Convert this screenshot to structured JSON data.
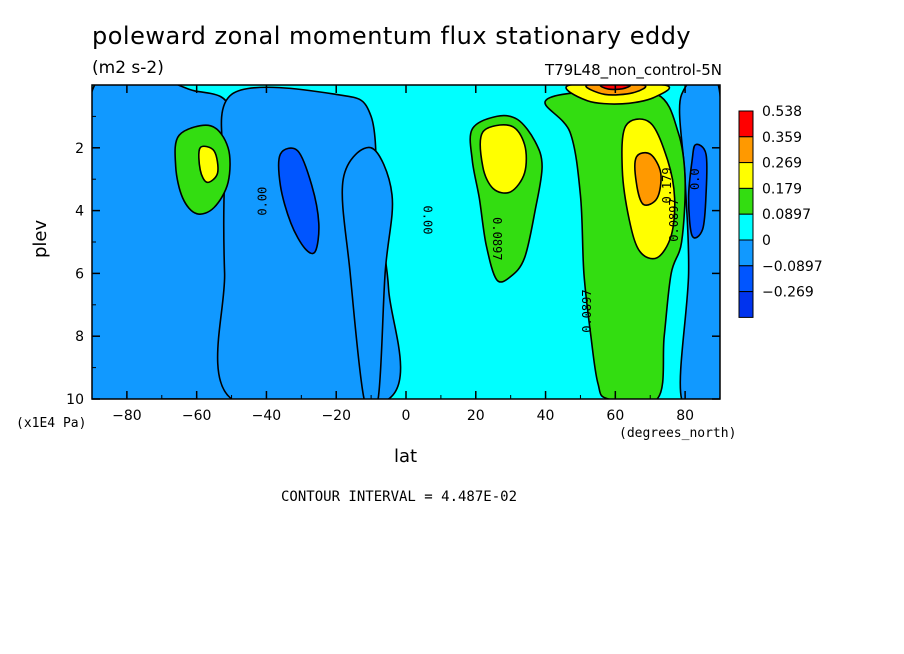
{
  "chart_data": {
    "type": "heatmap",
    "title": "poleward zonal momentum flux stationary eddy",
    "units": "(m2 s-2)",
    "run_label": "T79L48_non_control-5N",
    "xlabel": "lat",
    "ylabel": "plev",
    "x_units": "(degrees_north)",
    "y_units": "(x1E4 Pa)",
    "xlim": [
      -90,
      90
    ],
    "ylim": [
      0,
      10
    ],
    "y_inverted": true,
    "x_ticks": [
      -80,
      -60,
      -40,
      -20,
      0,
      20,
      40,
      60,
      80
    ],
    "y_ticks": [
      2,
      4,
      6,
      8,
      10
    ],
    "contour_interval_text": "CONTOUR INTERVAL = 4.487E-02",
    "colorbar": {
      "levels": [
        "0.538",
        "0.359",
        "0.269",
        "0.179",
        "0.0897",
        "0",
        "−0.0897",
        "−0.269"
      ],
      "colors": [
        "#ff0000",
        "#ff9900",
        "#ffff00",
        "#33dd11",
        "#00ffff",
        "#1199ff",
        "#0055ff",
        "#0033ee"
      ]
    },
    "contour_labels": [
      {
        "text": "0.00",
        "x": -40,
        "y": 3.7,
        "rotate": -90
      },
      {
        "text": "0.00",
        "x": 5,
        "y": 4.3,
        "rotate": 90
      },
      {
        "text": "0.0897",
        "x": 25,
        "y": 4.9,
        "rotate": 90
      },
      {
        "text": "0.0897",
        "x": 53,
        "y": 7.2,
        "rotate": -90
      },
      {
        "text": "0.179",
        "x": 76,
        "y": 3.2,
        "rotate": -90
      },
      {
        "text": "0.0897",
        "x": 78,
        "y": 4.3,
        "rotate": -90
      },
      {
        "text": "0.0",
        "x": 84,
        "y": 3.0,
        "rotate": -90
      }
    ],
    "regions": [
      {
        "name": "southern-jet-weak",
        "color": "#1199ff",
        "pts": [
          [
            -90,
            0.2
          ],
          [
            -60,
            0.2
          ],
          [
            -50,
            0.8
          ],
          [
            -48,
            3
          ],
          [
            -50,
            6
          ],
          [
            -48,
            10
          ],
          [
            -60,
            10
          ],
          [
            -70,
            10
          ],
          [
            -90,
            10
          ]
        ]
      },
      {
        "name": "south-negative-band",
        "color": "#1199ff",
        "pts": [
          [
            -50,
            0.3
          ],
          [
            -20,
            0.3
          ],
          [
            -10,
            1
          ],
          [
            -8,
            4
          ],
          [
            -5,
            6.5
          ],
          [
            -5,
            10
          ],
          [
            -50,
            10
          ],
          [
            -52,
            6
          ],
          [
            -52,
            3
          ]
        ]
      },
      {
        "name": "tropics-weak",
        "color": "#1199ff",
        "pts": [
          [
            -10,
            2
          ],
          [
            -4,
            3.5
          ],
          [
            -6,
            6
          ],
          [
            -8,
            10
          ],
          [
            -12,
            10
          ],
          [
            -16,
            6
          ],
          [
            -18,
            3
          ]
        ]
      },
      {
        "name": "arctic-weak",
        "color": "#1199ff",
        "pts": [
          [
            79,
            0.3
          ],
          [
            90,
            0.3
          ],
          [
            90,
            10
          ],
          [
            79,
            10
          ],
          [
            81,
            6
          ],
          [
            80,
            3
          ]
        ]
      },
      {
        "name": "south-neg-core",
        "color": "#0055ff",
        "pts": [
          [
            -36,
            2.2
          ],
          [
            -31,
            2.1
          ],
          [
            -27,
            3.2
          ],
          [
            -25,
            4.4
          ],
          [
            -26,
            5.3
          ],
          [
            -29,
            5.2
          ],
          [
            -33,
            4.4
          ],
          [
            -36,
            3.2
          ]
        ]
      },
      {
        "name": "arctic-neg-core",
        "color": "#0055ff",
        "pts": [
          [
            83,
            1.9
          ],
          [
            86,
            2.2
          ],
          [
            86,
            3.5
          ],
          [
            85,
            4.6
          ],
          [
            82,
            4.8
          ],
          [
            81,
            3.6
          ],
          [
            82,
            2.4
          ]
        ]
      },
      {
        "name": "south-pos",
        "color": "#33dd11",
        "pts": [
          [
            -65,
            1.6
          ],
          [
            -56,
            1.3
          ],
          [
            -51,
            2
          ],
          [
            -51,
            3.1
          ],
          [
            -55,
            3.9
          ],
          [
            -60,
            4.1
          ],
          [
            -64,
            3.6
          ],
          [
            -66,
            2.6
          ]
        ]
      },
      {
        "name": "south-pos-core",
        "color": "#ffff00",
        "pts": [
          [
            -59,
            2.0
          ],
          [
            -55,
            2.1
          ],
          [
            -54,
            2.8
          ],
          [
            -57,
            3.1
          ],
          [
            -59,
            2.7
          ]
        ]
      },
      {
        "name": "mid-pos",
        "color": "#33dd11",
        "pts": [
          [
            19,
            1.4
          ],
          [
            26,
            1.0
          ],
          [
            32,
            1.1
          ],
          [
            37,
            1.8
          ],
          [
            39,
            2.6
          ],
          [
            37,
            4.0
          ],
          [
            34,
            5.5
          ],
          [
            30,
            6.1
          ],
          [
            26,
            6.2
          ],
          [
            23,
            5.1
          ],
          [
            21,
            3.6
          ],
          [
            19,
            2.4
          ]
        ]
      },
      {
        "name": "mid-pos-core",
        "color": "#ffff00",
        "pts": [
          [
            22,
            1.5
          ],
          [
            30,
            1.3
          ],
          [
            34,
            1.9
          ],
          [
            34,
            2.8
          ],
          [
            30,
            3.4
          ],
          [
            25,
            3.3
          ],
          [
            22,
            2.6
          ]
        ]
      },
      {
        "name": "northern-jet",
        "color": "#33dd11",
        "pts": [
          [
            40,
            0.5
          ],
          [
            55,
            0.2
          ],
          [
            72,
            0.3
          ],
          [
            78,
            1.5
          ],
          [
            80,
            3
          ],
          [
            79,
            5
          ],
          [
            76,
            6
          ],
          [
            74,
            8
          ],
          [
            72,
            10
          ],
          [
            58,
            10
          ],
          [
            55,
            9.5
          ],
          [
            53,
            8
          ],
          [
            51,
            6
          ],
          [
            50,
            3.5
          ],
          [
            47,
            1.5
          ]
        ]
      },
      {
        "name": "northern-jet-core",
        "color": "#ffff00",
        "pts": [
          [
            63,
            1.3
          ],
          [
            70,
            1.2
          ],
          [
            75,
            2.4
          ],
          [
            77,
            3.6
          ],
          [
            76,
            4.8
          ],
          [
            72,
            5.5
          ],
          [
            67,
            5.3
          ],
          [
            64,
            4.3
          ],
          [
            62,
            2.7
          ]
        ]
      },
      {
        "name": "northern-jet-max",
        "color": "#ff9900",
        "pts": [
          [
            66,
            2.3
          ],
          [
            70,
            2.2
          ],
          [
            73,
            2.8
          ],
          [
            72,
            3.6
          ],
          [
            68,
            3.8
          ],
          [
            66,
            3.1
          ]
        ]
      },
      {
        "name": "top-max",
        "color": "#ffff00",
        "pts": [
          [
            47,
            0.0
          ],
          [
            74,
            0.0
          ],
          [
            71,
            0.4
          ],
          [
            62,
            0.6
          ],
          [
            52,
            0.5
          ]
        ]
      },
      {
        "name": "top-max-core",
        "color": "#ff9900",
        "pts": [
          [
            52,
            0.0
          ],
          [
            68,
            0.0
          ],
          [
            65,
            0.25
          ],
          [
            57,
            0.3
          ]
        ]
      },
      {
        "name": "top-max-peak",
        "color": "#ff0000",
        "pts": [
          [
            56,
            0.0
          ],
          [
            64,
            0.0
          ],
          [
            62,
            0.12
          ],
          [
            58,
            0.13
          ]
        ]
      }
    ]
  }
}
